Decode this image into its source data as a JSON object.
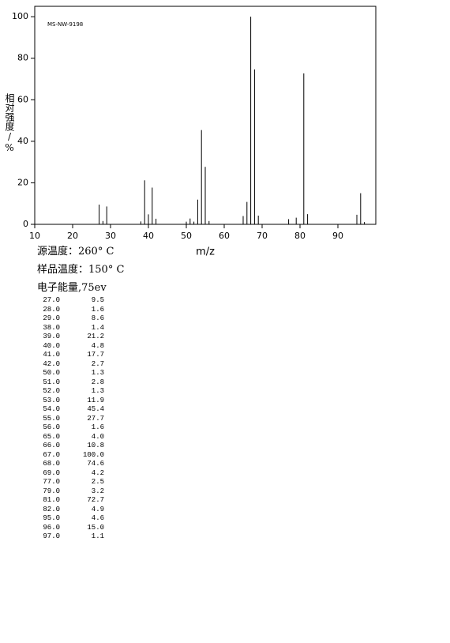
{
  "chart_data": {
    "type": "bar",
    "annotation": "MS-NW-9198",
    "ylabel": "相对强度/%",
    "xlabel": "m/z",
    "conditions": [
      "源温度：260° C",
      "样品温度：150° C",
      "电子能量,75ev"
    ],
    "x": [
      27,
      28,
      29,
      38,
      39,
      40,
      41,
      42,
      50,
      51,
      52,
      53,
      54,
      55,
      56,
      65,
      66,
      67,
      68,
      69,
      77,
      79,
      81,
      82,
      95,
      96,
      97
    ],
    "x_labels": [
      "27.0",
      "28.0",
      "29.0",
      "38.0",
      "39.0",
      "40.0",
      "41.0",
      "42.0",
      "50.0",
      "51.0",
      "52.0",
      "53.0",
      "54.0",
      "55.0",
      "56.0",
      "65.0",
      "66.0",
      "67.0",
      "68.0",
      "69.0",
      "77.0",
      "79.0",
      "81.0",
      "82.0",
      "95.0",
      "96.0",
      "97.0"
    ],
    "values": [
      9.5,
      1.6,
      8.6,
      1.4,
      21.2,
      4.8,
      17.7,
      2.7,
      1.3,
      2.8,
      1.3,
      11.9,
      45.4,
      27.7,
      1.6,
      4.0,
      10.8,
      100,
      74.6,
      4.2,
      2.5,
      3.2,
      72.7,
      4.9,
      4.6,
      15.0,
      1.1
    ],
    "value_labels": [
      "9.5",
      "1.6",
      "8.6",
      "1.4",
      "21.2",
      "4.8",
      "17.7",
      "2.7",
      "1.3",
      "2.8",
      "1.3",
      "11.9",
      "45.4",
      "27.7",
      "1.6",
      "4.0",
      "10.8",
      "100.0",
      "74.6",
      "4.2",
      "2.5",
      "3.2",
      "72.7",
      "4.9",
      "4.6",
      "15.0",
      "1.1"
    ],
    "color": "#000000",
    "xlim": [
      10,
      100
    ],
    "xticks": [
      10,
      20,
      30,
      40,
      50,
      60,
      70,
      80,
      90
    ],
    "ylim": [
      0,
      105
    ],
    "yticks": [
      0,
      20,
      40,
      60,
      80,
      100
    ]
  }
}
